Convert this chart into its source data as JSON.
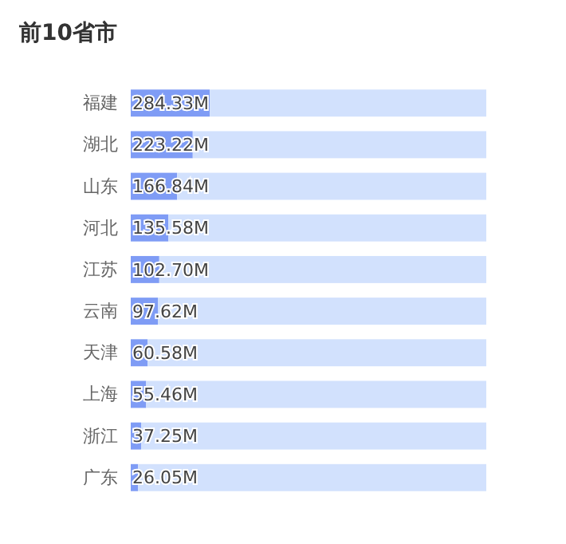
{
  "chart_data": {
    "type": "bar",
    "orientation": "horizontal",
    "stacked": true,
    "title": "前10省市",
    "categories": [
      "福建",
      "湖北",
      "山东",
      "河北",
      "江苏",
      "云南",
      "天津",
      "上海",
      "浙江",
      "广东"
    ],
    "series": [
      {
        "color": "#7f9cf5",
        "values": [
          284.33,
          223.22,
          166.84,
          135.58,
          102.7,
          97.62,
          60.58,
          55.46,
          37.25,
          26.05
        ],
        "value_labels": [
          "284.33M",
          "223.22M",
          "166.84M",
          "135.58M",
          "102.70M",
          "97.62M",
          "60.58M",
          "55.46M",
          "37.25M",
          "26.05M"
        ]
      },
      {
        "color": "#d2e1fd",
        "values": [
          995.67,
          1056.78,
          1113.16,
          1144.42,
          1177.3,
          1182.38,
          1219.42,
          1224.54,
          1242.75,
          1253.95
        ]
      }
    ],
    "xlim": [
      0,
      1280
    ],
    "tick_labels": "y"
  }
}
